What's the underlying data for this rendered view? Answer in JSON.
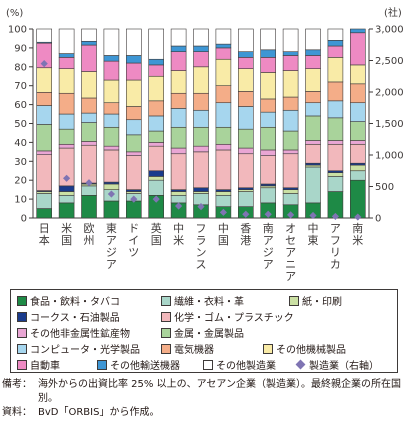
{
  "chart_data": {
    "type": "bar",
    "stacked": true,
    "y_left_label": "(%)",
    "y_left_ticks": [
      0,
      10,
      20,
      30,
      40,
      50,
      60,
      70,
      80,
      90,
      100
    ],
    "y_right_label": "(社)",
    "y_right_ticks": [
      "0",
      "500",
      "1,000",
      "1,500",
      "2,000",
      "2,500",
      "3,000"
    ],
    "y_right_lim": [
      0,
      3000
    ],
    "categories": [
      "日本",
      "米国",
      "欧州",
      "東アジア",
      "ドイツ",
      "英国",
      "中米",
      "フランス",
      "中国",
      "香港",
      "南アジア",
      "オセアニア",
      "中東",
      "アフリカ",
      "南米"
    ],
    "series": [
      {
        "name": "食品・飲料・タバコ",
        "color": "#1e8a46",
        "values": [
          5,
          8,
          12,
          9,
          9,
          12,
          8,
          7,
          6,
          6,
          8,
          7,
          8,
          14,
          20
        ]
      },
      {
        "name": "繊維・衣料・革",
        "color": "#a9d6c9",
        "values": [
          8,
          4,
          5,
          6,
          4,
          8,
          4,
          6,
          6,
          8,
          8,
          6,
          19,
          8,
          5
        ]
      },
      {
        "name": "紙・印刷",
        "color": "#cbe0a4",
        "values": [
          1,
          2,
          1,
          3,
          1,
          2,
          2,
          1,
          2,
          1,
          1,
          2,
          1,
          2,
          3
        ]
      },
      {
        "name": "コークス・石油製品",
        "color": "#1a3b8c",
        "values": [
          0.5,
          3,
          0.5,
          1,
          1,
          3,
          1,
          2,
          1,
          1,
          1,
          1,
          1,
          1,
          1
        ]
      },
      {
        "name": "化学・ゴム・プラスチック",
        "color": "#f2b8bc",
        "values": [
          19,
          20,
          20,
          17,
          18,
          13,
          19,
          19,
          21,
          18,
          15,
          18,
          10,
          14,
          10
        ]
      },
      {
        "name": "その他非金属性鉱産物",
        "color": "#e9a6d4",
        "values": [
          2,
          2,
          2,
          2,
          2,
          2,
          3,
          3,
          3,
          3,
          3,
          2,
          2,
          2,
          2
        ]
      },
      {
        "name": "金属・金属製品",
        "color": "#a9d39b",
        "values": [
          14,
          8,
          10,
          10,
          9,
          6,
          11,
          10,
          9,
          10,
          12,
          10,
          13,
          12,
          10
        ]
      },
      {
        "name": "コンピュータ・光学製品",
        "color": "#a6d6ee",
        "values": [
          10,
          8,
          5,
          7,
          8,
          8,
          10,
          9,
          13,
          12,
          8,
          11,
          7,
          9,
          10
        ]
      },
      {
        "name": "電気機器",
        "color": "#f4ad88",
        "values": [
          7,
          11,
          8,
          6,
          7,
          8,
          8,
          9,
          9,
          8,
          7,
          7,
          6,
          10,
          10
        ]
      },
      {
        "name": "その他機械製品",
        "color": "#f9eba7",
        "values": [
          13,
          13,
          14,
          12,
          14,
          13,
          12,
          14,
          14,
          12,
          14,
          14,
          12,
          13,
          10
        ]
      },
      {
        "name": "自動車",
        "color": "#ee8ac3",
        "values": [
          13,
          6,
          14,
          10,
          9,
          6,
          10,
          8,
          6,
          6,
          8,
          8,
          7,
          6,
          17
        ]
      },
      {
        "name": "その他輸送機器",
        "color": "#3e96d4",
        "values": [
          0.5,
          2,
          2,
          3,
          4,
          3,
          3,
          3,
          2,
          3,
          4,
          2,
          3,
          3,
          2
        ]
      },
      {
        "name": "その他製造業",
        "color": "#ffffff",
        "values": [
          7,
          13,
          6.5,
          14,
          14,
          16,
          9,
          9,
          8,
          12,
          11,
          12,
          11,
          6,
          0
        ]
      }
    ],
    "line_series": {
      "name": "製造業（右軸）",
      "axis": "right",
      "marker": "diamond",
      "color": "#7f74b3",
      "values": [
        2450,
        630,
        560,
        380,
        300,
        300,
        190,
        180,
        90,
        60,
        60,
        50,
        40,
        25,
        15
      ]
    },
    "grid": false,
    "legend_placement": "bottom"
  },
  "legend": {
    "items": [
      {
        "label": "食品・飲料・タバコ",
        "color": "#1e8a46"
      },
      {
        "label": "繊維・衣料・革",
        "color": "#a9d6c9"
      },
      {
        "label": "紙・印刷",
        "color": "#cbe0a4"
      },
      {
        "label": "コークス・石油製品",
        "color": "#1a3b8c"
      },
      {
        "label": "化学・ゴム・プラスチック",
        "color": "#f2b8bc"
      },
      {
        "label": "その他非金属性鉱産物",
        "color": "#e9a6d4"
      },
      {
        "label": "金属・金属製品",
        "color": "#a9d39b"
      },
      {
        "label": "コンピュータ・光学製品",
        "color": "#a6d6ee"
      },
      {
        "label": "電気機器",
        "color": "#f4ad88"
      },
      {
        "label": "その他機械製品",
        "color": "#f9eba7"
      },
      {
        "label": "自動車",
        "color": "#ee8ac3"
      },
      {
        "label": "その他輸送機器",
        "color": "#3e96d4"
      },
      {
        "label": "その他製造業",
        "color": "#ffffff"
      },
      {
        "label": "製造業（右軸）",
        "color": "#7f74b3",
        "marker": "diamond"
      }
    ]
  },
  "notes": {
    "label1": "備考：",
    "text1": "海外からの出資比率 25% 以上の、アセアン企業（製造業）。最終親企業の所在国別。",
    "label2": "資料：",
    "text2": "BvD「ORBIS」から作成。"
  }
}
